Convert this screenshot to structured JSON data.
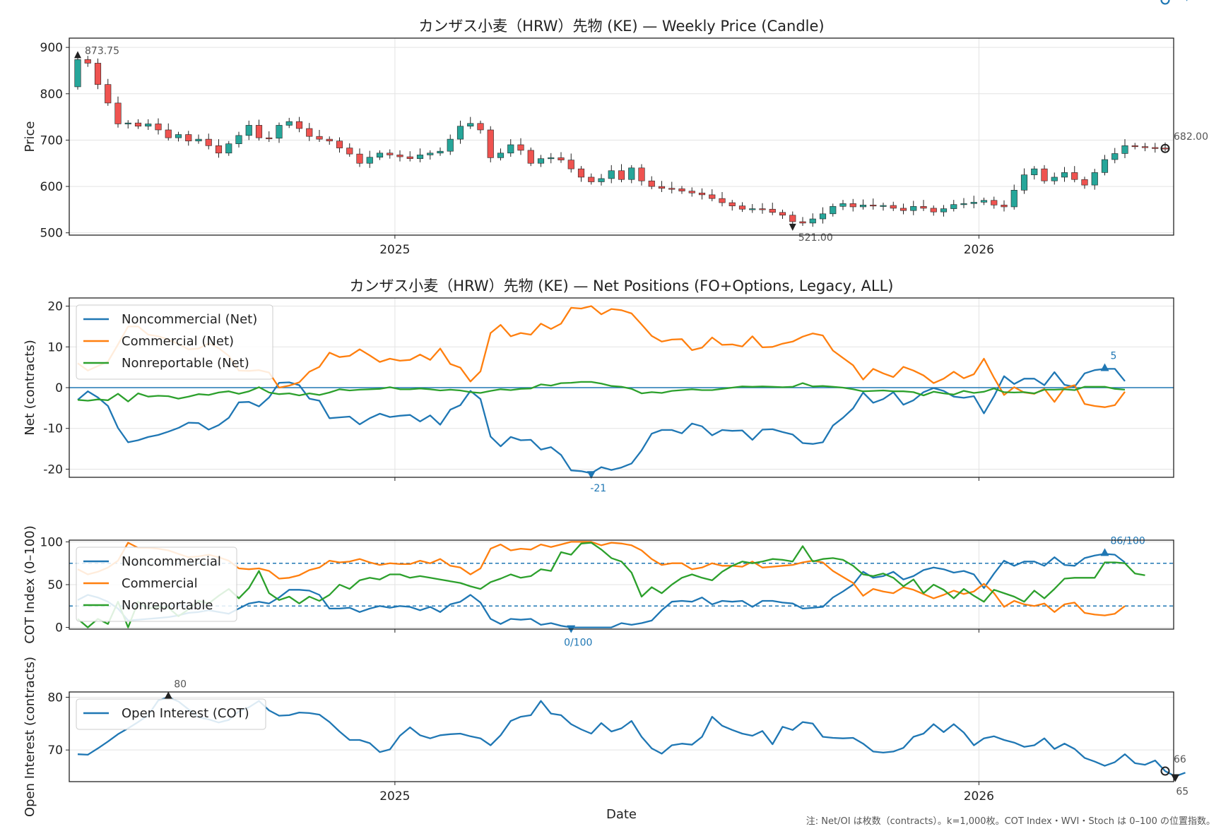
{
  "chart_data": [
    {
      "type": "candlestick",
      "title": "カンザス小麦（HRW）先物 (KE) — Weekly Price (Candle)",
      "ylabel": "Price",
      "ylim": [
        495,
        920
      ],
      "yticks": [
        500,
        600,
        700,
        800,
        900
      ],
      "xticks": [
        "2025",
        "2026"
      ],
      "grid": true,
      "colors": {
        "up": "#26a69a",
        "down": "#ef5350",
        "wick": "#222222"
      },
      "annotations": {
        "max": "873.75",
        "min": "521.00",
        "last": "682.00"
      },
      "close": [
        873.75,
        866,
        820,
        780,
        735,
        737,
        730,
        735,
        722,
        705,
        712,
        698,
        702,
        688,
        672,
        692,
        710,
        732,
        705,
        704,
        732,
        740,
        725,
        708,
        702,
        698,
        683,
        670,
        650,
        663,
        672,
        668,
        664,
        660,
        668,
        672,
        676,
        702,
        730,
        736,
        722,
        662,
        672,
        690,
        678,
        650,
        660,
        662,
        657,
        638,
        620,
        610,
        617,
        634,
        615,
        640,
        612,
        600,
        596,
        595,
        590,
        586,
        582,
        574,
        565,
        558,
        551,
        552,
        551,
        544,
        538,
        524,
        521,
        530,
        541,
        557,
        563,
        556,
        560,
        558,
        559,
        553,
        548,
        557,
        553,
        545,
        552,
        561,
        563,
        566,
        570,
        560,
        556,
        592,
        625,
        638,
        612,
        620,
        630,
        615,
        603,
        630,
        658,
        671,
        688,
        686,
        684,
        683,
        682
      ]
    },
    {
      "type": "line",
      "title": "カンザス小麦（HRW）先物 (KE) — Net Positions (FO+Options, Legacy, ALL)",
      "ylabel": "Net (contracts)",
      "ylim": [
        -22,
        22
      ],
      "yticks": [
        -20,
        -10,
        0,
        10,
        20
      ],
      "grid": true,
      "legend": "upper-left",
      "series": [
        {
          "name": "Noncommercial (Net)",
          "color": "#1f77b4",
          "values": [
            -3,
            -0.9,
            -2.4,
            -4.5,
            -9.9,
            -13.4,
            -12.9,
            -12.1,
            -11.6,
            -10.8,
            -9.9,
            -8.6,
            -8.7,
            -10.3,
            -9.2,
            -7.4,
            -3.6,
            -3.5,
            -4.6,
            -2.4,
            1.2,
            1.3,
            0.6,
            -2.7,
            -3.2,
            -7.5,
            -7.3,
            -7.1,
            -9.0,
            -7.5,
            -6.4,
            -7.2,
            -6.9,
            -6.7,
            -8.3,
            -6.8,
            -9.1,
            -5.4,
            -4.3,
            -0.8,
            -2.8,
            -12,
            -14.4,
            -12.1,
            -12.9,
            -12.8,
            -15.2,
            -14.6,
            -16.5,
            -20.3,
            -20.5,
            -21,
            -19.5,
            -20.2,
            -19.6,
            -18.6,
            -15.4,
            -11.3,
            -10.4,
            -10.4,
            -11.2,
            -8.8,
            -9.5,
            -11.7,
            -10.4,
            -10.6,
            -10.5,
            -12.8,
            -10.3,
            -10.2,
            -10.9,
            -11.5,
            -13.6,
            -13.8,
            -13.4,
            -9.3,
            -7.4,
            -5.1,
            -1.2,
            -3.7,
            -2.8,
            -1.1,
            -4.2,
            -3.1,
            -1.1,
            -0.1,
            -0.8,
            -2.2,
            -2.5,
            -2.1,
            -6.3,
            -2.1,
            2.8,
            0.9,
            2.2,
            2.2,
            0.6,
            3.8,
            0.7,
            0.2,
            3.5,
            4.3,
            4.6,
            4.6,
            1.6
          ]
        },
        {
          "name": "Commercial (Net)",
          "color": "#ff7f0e",
          "values": [
            6,
            4.2,
            5.3,
            6.4,
            10.6,
            15,
            15,
            13,
            12.6,
            11.8,
            10.7,
            9.4,
            9.6,
            10.9,
            9.7,
            7.8,
            4.2,
            4.1,
            4.3,
            3.7,
            0,
            0.5,
            1.3,
            3.9,
            5.1,
            8.6,
            7.5,
            7.8,
            9.4,
            7.9,
            6.3,
            7.1,
            6.6,
            6.8,
            8.1,
            6.8,
            9.6,
            5.8,
            4.9,
            1.5,
            4.0,
            13.4,
            15.4,
            12.6,
            13.4,
            13,
            15.7,
            14.4,
            15.7,
            19.6,
            19.4,
            20,
            18,
            19.3,
            19,
            18.2,
            15.5,
            12.7,
            11.3,
            11.8,
            11.9,
            9.2,
            9.8,
            12.3,
            10.5,
            10.6,
            10.1,
            12.6,
            9.9,
            10,
            10.8,
            11.3,
            12.5,
            13.3,
            12.8,
            9.1,
            7.3,
            5.5,
            2,
            4.6,
            3.5,
            2.6,
            5.1,
            4.2,
            3,
            1.1,
            2.2,
            3.9,
            2.3,
            3.3,
            7.1,
            2.4,
            -1.8,
            0.1,
            -1.2,
            -1.5,
            -0.3,
            -3.5,
            -0.1,
            0.6,
            -4,
            -4.5,
            -4.8,
            -4.3,
            -1
          ]
        },
        {
          "name": "Nonreportable (Net)",
          "color": "#2ca02c",
          "values": [
            -3,
            -3.2,
            -2.9,
            -3.1,
            -1.5,
            -3.4,
            -1.4,
            -2.2,
            -2.0,
            -2.1,
            -2.7,
            -2.2,
            -1.6,
            -1.8,
            -1.2,
            -0.9,
            -1.5,
            -0.9,
            0.1,
            -1.2,
            -1.6,
            -1.4,
            -1.9,
            -1.4,
            -1.8,
            -1.2,
            -0.4,
            -0.7,
            -0.5,
            -0.4,
            -0.3,
            0.1,
            -0.4,
            -0.4,
            -0.2,
            -0.4,
            -0.7,
            -0.5,
            -0.7,
            -1.1,
            -1.3,
            -0.8,
            -0.4,
            -0.6,
            -0.3,
            -0.2,
            0.8,
            0.5,
            1.1,
            1.2,
            1.4,
            1.4,
            1,
            0.4,
            0.2,
            -0.3,
            -1.4,
            -1.1,
            -1.3,
            -0.8,
            -0.6,
            -0.4,
            -0.6,
            -0.6,
            -0.3,
            0,
            0.3,
            0.2,
            0.3,
            0.2,
            0.1,
            0.2,
            1.1,
            0.3,
            0.4,
            0.2,
            0,
            -0.4,
            -0.9,
            -0.8,
            -0.7,
            -0.9,
            -0.9,
            -1.1,
            -1.9,
            -1.0,
            -1.4,
            -1.7,
            -0.8,
            -1.3,
            -1.0,
            -0.2,
            -1.1,
            -1.2,
            -1.1,
            -1.4,
            -0.5,
            -0.5,
            -0.4,
            -0.6,
            0.2,
            0.2,
            0.2,
            -0.3,
            -0.5
          ]
        }
      ],
      "annotations": {
        "max": "5",
        "min": "-21",
        "last": "2"
      }
    },
    {
      "type": "line",
      "ylabel": "COT Index (0–100)",
      "ylim": [
        -2,
        102
      ],
      "yticks": [
        0,
        50,
        100
      ],
      "reference_lines": [
        25,
        75
      ],
      "grid": true,
      "legend": "upper-left",
      "series": [
        {
          "name": "Noncommercial",
          "color": "#1f77b4",
          "values": [
            32,
            38,
            35,
            30,
            22,
            8,
            9,
            10,
            11,
            12,
            14,
            17,
            18,
            20,
            18,
            16,
            22,
            28,
            30,
            28,
            35,
            44,
            44,
            43,
            38,
            22,
            22,
            23,
            18,
            22,
            25,
            23,
            25,
            24,
            20,
            24,
            18,
            27,
            30,
            38,
            29,
            10,
            4,
            10,
            9,
            10,
            3,
            5,
            2,
            0,
            0,
            0,
            0,
            0,
            5,
            3,
            5,
            8,
            20,
            30,
            31,
            30,
            35,
            27,
            31,
            30,
            31,
            24,
            31,
            31,
            29,
            28,
            22,
            23,
            24,
            35,
            42,
            50,
            65,
            58,
            60,
            65,
            56,
            60,
            67,
            70,
            68,
            64,
            66,
            62,
            46,
            63,
            78,
            72,
            77,
            77,
            72,
            82,
            73,
            72,
            81,
            84,
            86,
            85,
            76
          ]
        },
        {
          "name": "Commercial",
          "color": "#ff7f0e",
          "values": [
            68,
            62,
            65,
            70,
            78,
            99,
            93,
            93,
            92,
            90,
            86,
            82,
            83,
            85,
            82,
            78,
            69,
            68,
            69,
            66,
            57,
            58,
            61,
            67,
            70,
            78,
            76,
            77,
            80,
            76,
            73,
            75,
            74,
            74,
            78,
            75,
            80,
            72,
            70,
            62,
            69,
            92,
            97,
            90,
            92,
            91,
            97,
            94,
            97,
            100,
            100,
            100,
            96,
            99,
            98,
            96,
            90,
            80,
            73,
            75,
            75,
            68,
            70,
            75,
            72,
            72,
            71,
            77,
            70,
            71,
            72,
            73,
            76,
            78,
            76,
            66,
            59,
            52,
            37,
            45,
            42,
            40,
            47,
            44,
            39,
            34,
            38,
            43,
            39,
            42,
            51,
            40,
            24,
            31,
            27,
            25,
            28,
            18,
            27,
            29,
            17,
            15,
            14,
            16,
            25
          ]
        },
        {
          "name": "Nonreportable",
          "color": "#2ca02c",
          "values": [
            10,
            0,
            10,
            4,
            30,
            0,
            30,
            22,
            24,
            23,
            13,
            21,
            31,
            28,
            37,
            45,
            34,
            46,
            66,
            40,
            32,
            36,
            28,
            36,
            31,
            38,
            50,
            45,
            55,
            58,
            56,
            62,
            62,
            58,
            60,
            58,
            56,
            54,
            52,
            48,
            45,
            53,
            57,
            62,
            58,
            60,
            68,
            66,
            88,
            85,
            98,
            99,
            91,
            81,
            77,
            64,
            36,
            47,
            40,
            50,
            58,
            62,
            58,
            55,
            65,
            72,
            77,
            75,
            77,
            80,
            79,
            77,
            95,
            77,
            80,
            81,
            79,
            72,
            62,
            60,
            63,
            58,
            48,
            56,
            40,
            50,
            44,
            34,
            45,
            37,
            30,
            44,
            40,
            36,
            30,
            43,
            34,
            45,
            57,
            58,
            58,
            58,
            76,
            76,
            75,
            63,
            61
          ]
        }
      ],
      "annotations": {
        "max": "86/100",
        "min": "0/100",
        "last": "76/100"
      }
    },
    {
      "type": "line",
      "xlabel": "Date",
      "ylabel": "Open Interest (contracts)",
      "ylim": [
        64,
        81
      ],
      "yticks": [
        70,
        80
      ],
      "xticks": [
        "2025",
        "2026"
      ],
      "grid": true,
      "legend": "upper-left",
      "series": [
        {
          "name": "Open Interest (COT)",
          "color": "#1f77b4",
          "values": [
            69.2,
            69.1,
            70.3,
            71.6,
            73.0,
            74.1,
            75.3,
            76.6,
            79.4,
            80,
            79.2,
            77.7,
            76.2,
            75.8,
            75.2,
            75.7,
            77.3,
            78.1,
            79.3,
            77.5,
            76.5,
            76.6,
            77.1,
            77,
            76.7,
            75.3,
            73.5,
            71.9,
            71.9,
            71.3,
            69.6,
            70.1,
            72.7,
            74.3,
            72.8,
            72.2,
            72.8,
            73.0,
            73.1,
            72.6,
            72.2,
            70.9,
            72.8,
            75.5,
            76.3,
            76.6,
            79.3,
            76.9,
            76.6,
            74.9,
            73.9,
            73.1,
            75.1,
            73.5,
            74.1,
            75.5,
            72.5,
            70.3,
            69.3,
            70.9,
            71.2,
            71.0,
            72.5,
            76.3,
            74.6,
            73.8,
            73.1,
            72.7,
            73.6,
            71.1,
            74.4,
            73.8,
            75.3,
            75,
            72.5,
            72.3,
            72.2,
            72.3,
            71.2,
            69.7,
            69.5,
            69.7,
            70.4,
            72.5,
            73.1,
            74.9,
            73.4,
            74.9,
            73.3,
            70.9,
            72.2,
            72.6,
            71.9,
            71.4,
            70.6,
            70.9,
            72.2,
            70.2,
            71.2,
            70.2,
            68.5,
            67.8,
            67.0,
            67.7,
            69.2,
            67.5,
            67.2,
            68.0,
            66.0,
            65,
            65.7
          ]
        }
      ],
      "annotations": {
        "max": "80",
        "min": "65",
        "last": "66"
      }
    }
  ],
  "footer_note": "注: Net/OI は枚数（contracts）。k=1,000枚。COT Index・WVI・Stoch は 0–100 の位置指数。"
}
